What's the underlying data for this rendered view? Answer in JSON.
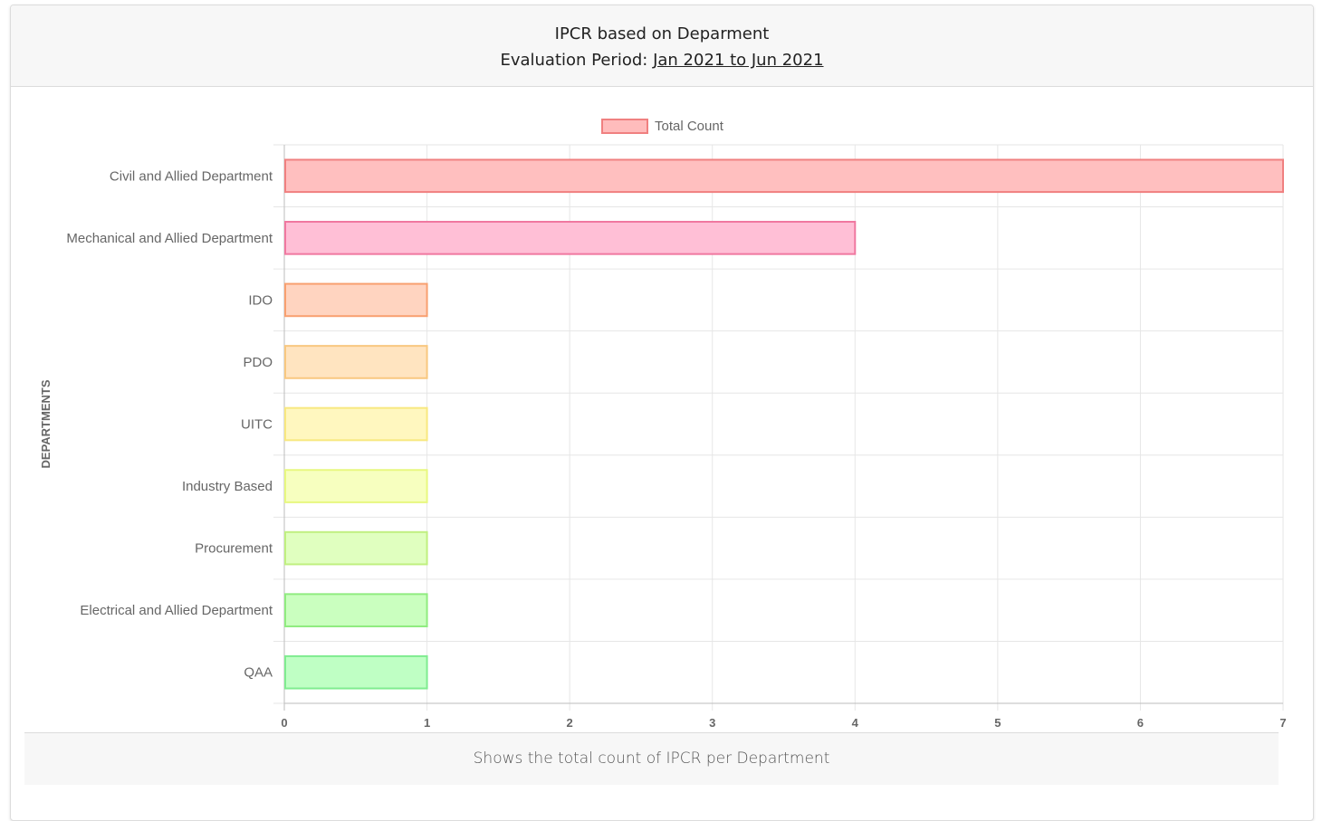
{
  "header": {
    "title": "IPCR based on Deparment",
    "period_label": "Evaluation Period:",
    "period_value": "Jan 2021 to Jun 2021"
  },
  "footer": {
    "caption": "Shows the total count of IPCR per Department"
  },
  "chart_data": {
    "type": "bar",
    "orientation": "horizontal",
    "title": "",
    "xlabel": "",
    "ylabel": "DEPARTMENTS",
    "xlim": [
      0,
      7
    ],
    "x_ticks": [
      0,
      1,
      2,
      3,
      4,
      5,
      6,
      7
    ],
    "grid": true,
    "legend_position": "top",
    "categories": [
      "Civil and Allied Department",
      "Mechanical and Allied Department",
      "IDO",
      "PDO",
      "UITC",
      "Industry Based",
      "Procurement",
      "Electrical and Allied Department",
      "QAA"
    ],
    "series": [
      {
        "name": "Total Count",
        "values": [
          7,
          4,
          1,
          1,
          1,
          1,
          1,
          1,
          1
        ]
      }
    ],
    "colors": {
      "legend_fill": "#ffbcbc",
      "legend_border": "#f08080",
      "bar_fills": [
        "#ffbfbf",
        "#ffbfd6",
        "#ffd4c0",
        "#ffe4c0",
        "#fff7bf",
        "#f7ffbf",
        "#e0ffbf",
        "#caffbf",
        "#bfffc4"
      ],
      "bar_borders": [
        "#f08080",
        "#f078a0",
        "#f8a070",
        "#f8c880",
        "#f8e880",
        "#e8f880",
        "#c0f080",
        "#90ec80",
        "#80ec90"
      ]
    }
  }
}
